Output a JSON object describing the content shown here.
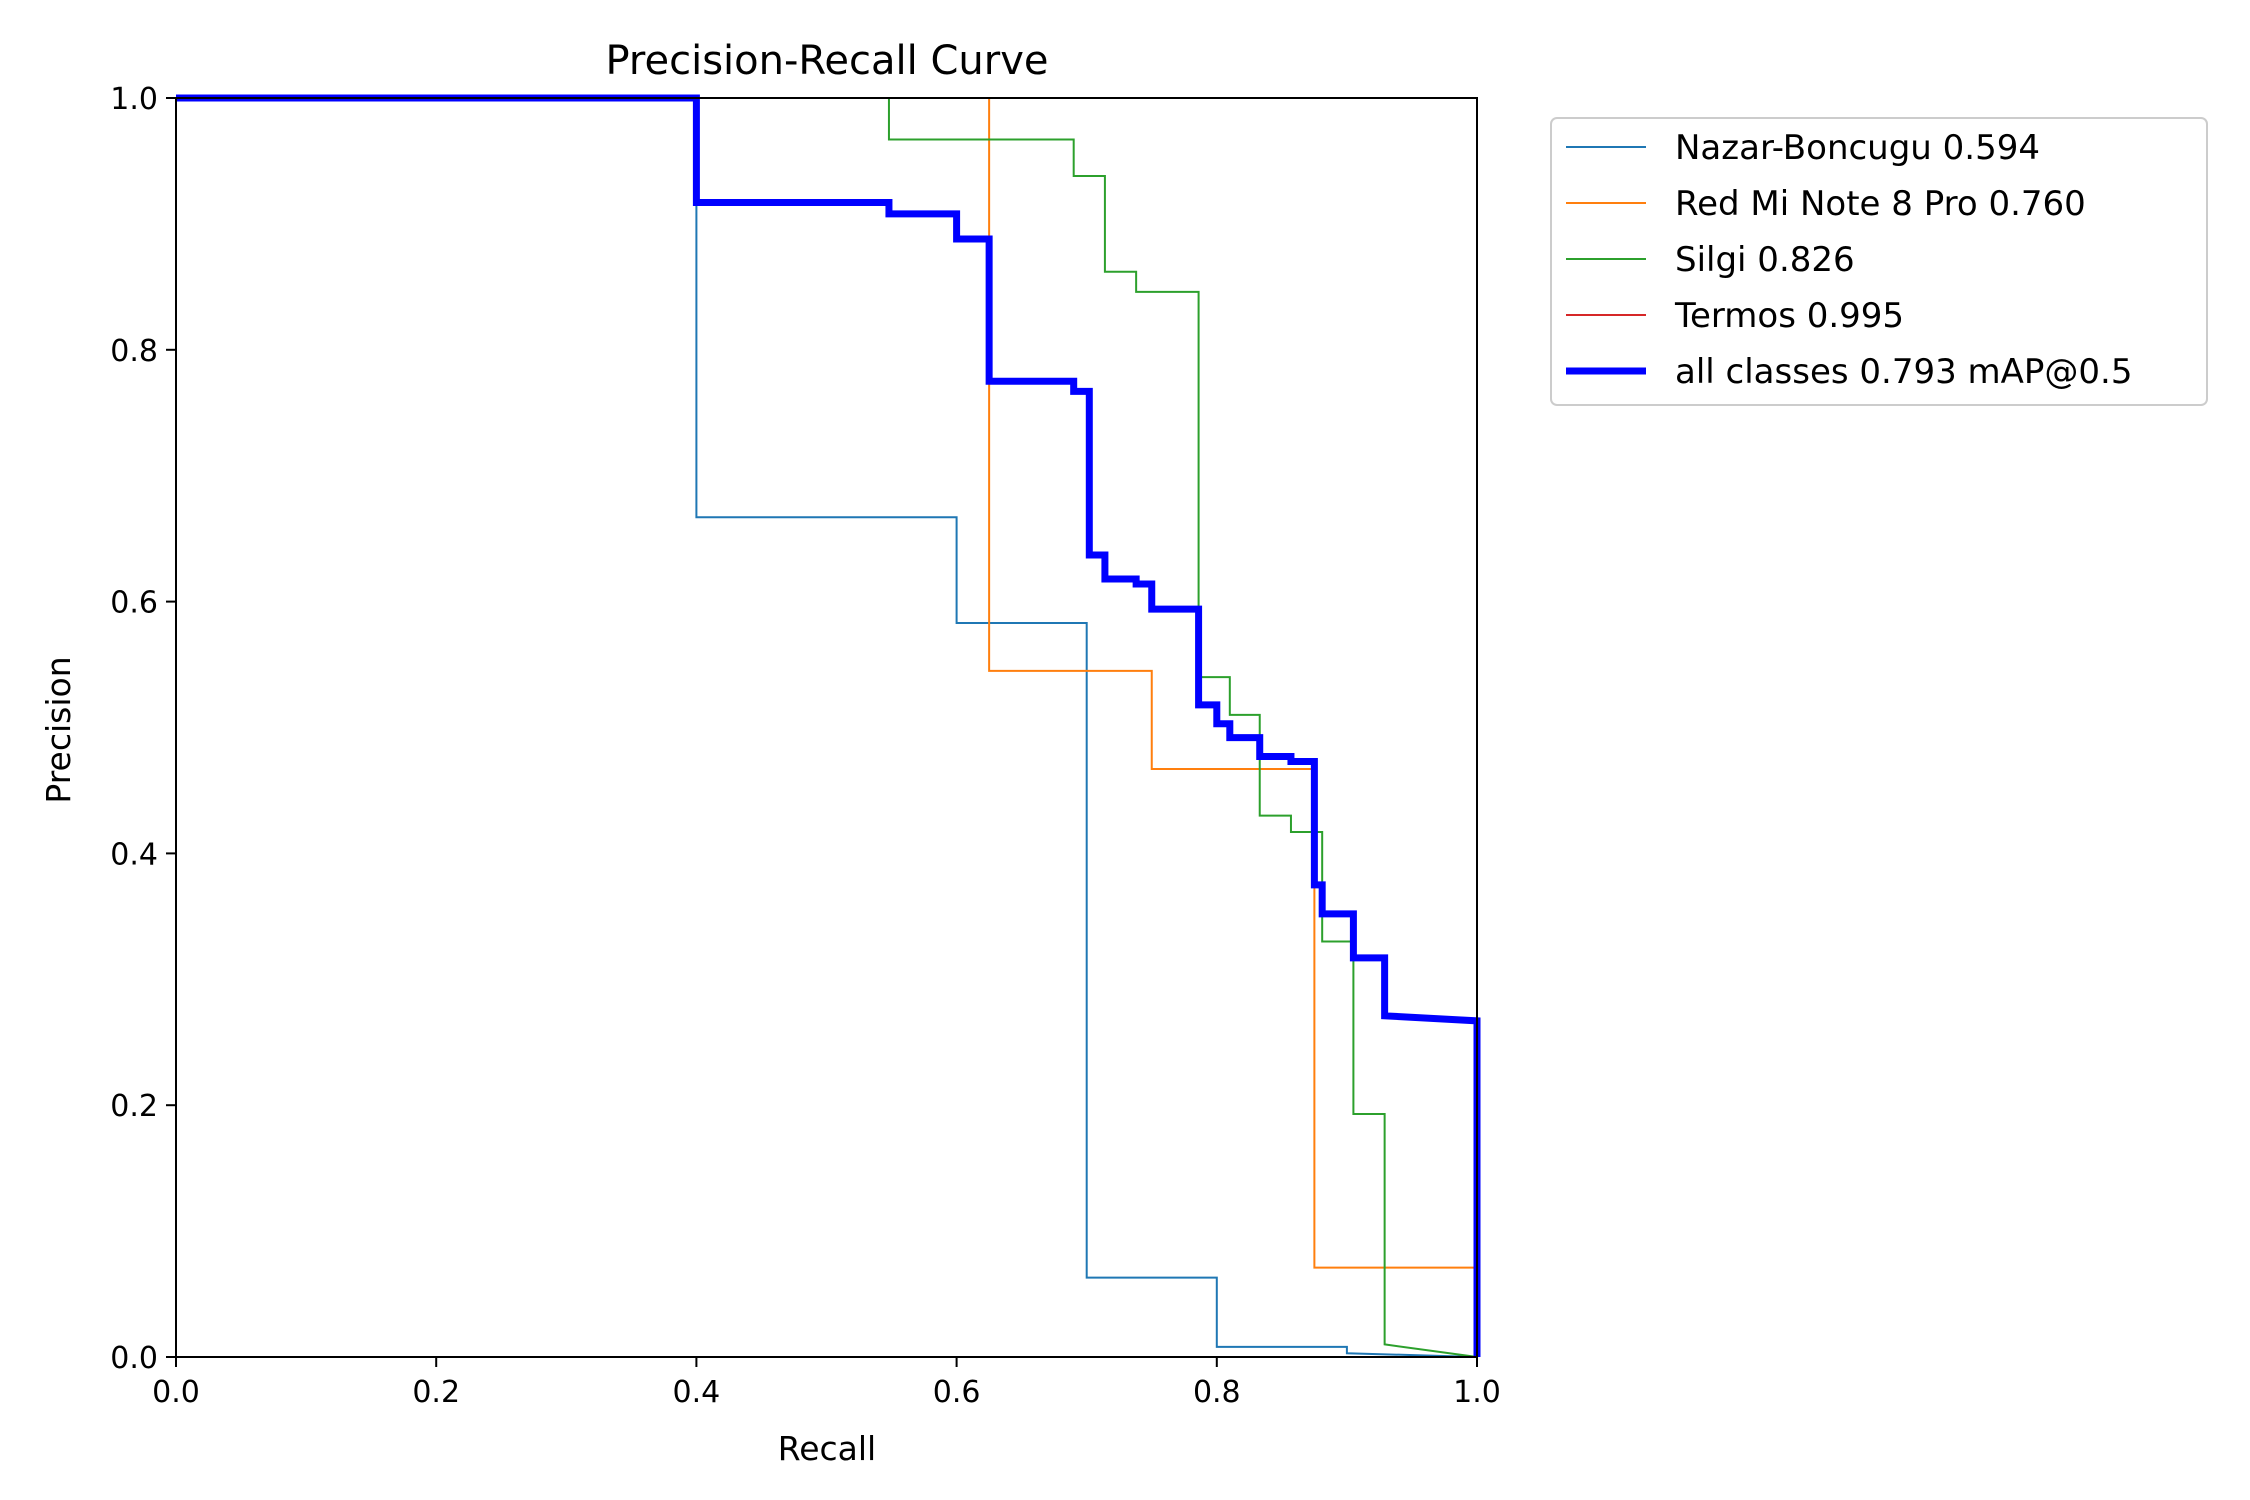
{
  "chart_data": {
    "type": "line",
    "title": "Precision-Recall Curve",
    "xlabel": "Recall",
    "ylabel": "Precision",
    "xlim": [
      0,
      1
    ],
    "ylim": [
      0,
      1
    ],
    "x_ticks": [
      "0.0",
      "0.2",
      "0.4",
      "0.6",
      "0.8",
      "1.0"
    ],
    "y_ticks": [
      "0.0",
      "0.2",
      "0.4",
      "0.6",
      "0.8",
      "1.0"
    ],
    "grid": false,
    "legend_position": "outside-top-right",
    "series": [
      {
        "name": "Nazar-Boncugu 0.594",
        "color": "#1f77b4",
        "width": "thin",
        "points": [
          [
            0,
            1
          ],
          [
            0.4,
            1
          ],
          [
            0.4,
            0.667
          ],
          [
            0.6,
            0.667
          ],
          [
            0.6,
            0.583
          ],
          [
            0.7,
            0.583
          ],
          [
            0.7,
            0.063
          ],
          [
            0.8,
            0.063
          ],
          [
            0.8,
            0.008
          ],
          [
            0.9,
            0.008
          ],
          [
            0.9,
            0.003
          ],
          [
            1.0,
            0.0
          ]
        ]
      },
      {
        "name": "Red Mi Note 8 Pro 0.760",
        "color": "#ff7f0e",
        "width": "thin",
        "points": [
          [
            0,
            1
          ],
          [
            0.625,
            1
          ],
          [
            0.625,
            0.545
          ],
          [
            0.75,
            0.545
          ],
          [
            0.75,
            0.467
          ],
          [
            0.875,
            0.467
          ],
          [
            0.875,
            0.071
          ],
          [
            1.0,
            0.071
          ],
          [
            1.0,
            0.0
          ]
        ]
      },
      {
        "name": "Silgi 0.826",
        "color": "#2ca02c",
        "width": "thin",
        "points": [
          [
            0,
            1
          ],
          [
            0.548,
            1
          ],
          [
            0.548,
            0.967
          ],
          [
            0.69,
            0.967
          ],
          [
            0.69,
            0.938
          ],
          [
            0.714,
            0.938
          ],
          [
            0.714,
            0.862
          ],
          [
            0.738,
            0.862
          ],
          [
            0.738,
            0.846
          ],
          [
            0.786,
            0.846
          ],
          [
            0.786,
            0.54
          ],
          [
            0.81,
            0.54
          ],
          [
            0.81,
            0.51
          ],
          [
            0.833,
            0.51
          ],
          [
            0.833,
            0.43
          ],
          [
            0.857,
            0.43
          ],
          [
            0.857,
            0.417
          ],
          [
            0.881,
            0.417
          ],
          [
            0.881,
            0.33
          ],
          [
            0.905,
            0.33
          ],
          [
            0.905,
            0.193
          ],
          [
            0.929,
            0.193
          ],
          [
            0.929,
            0.01
          ],
          [
            1.0,
            0.0
          ]
        ]
      },
      {
        "name": "Termos 0.995",
        "color": "#d62728",
        "width": "thin",
        "points": [
          [
            0,
            1
          ],
          [
            1.0,
            1
          ],
          [
            1.0,
            0.0
          ]
        ]
      },
      {
        "name": "all classes 0.793 mAP@0.5",
        "color": "#0000ff",
        "width": "thick",
        "points": [
          [
            0,
            1
          ],
          [
            0.4,
            1
          ],
          [
            0.4,
            0.917
          ],
          [
            0.548,
            0.917
          ],
          [
            0.548,
            0.908
          ],
          [
            0.6,
            0.908
          ],
          [
            0.6,
            0.888
          ],
          [
            0.625,
            0.888
          ],
          [
            0.625,
            0.775
          ],
          [
            0.69,
            0.775
          ],
          [
            0.69,
            0.767
          ],
          [
            0.702,
            0.767
          ],
          [
            0.702,
            0.637
          ],
          [
            0.714,
            0.637
          ],
          [
            0.714,
            0.618
          ],
          [
            0.738,
            0.618
          ],
          [
            0.738,
            0.614
          ],
          [
            0.75,
            0.614
          ],
          [
            0.75,
            0.594
          ],
          [
            0.786,
            0.594
          ],
          [
            0.786,
            0.518
          ],
          [
            0.8,
            0.518
          ],
          [
            0.8,
            0.503
          ],
          [
            0.81,
            0.503
          ],
          [
            0.81,
            0.492
          ],
          [
            0.833,
            0.492
          ],
          [
            0.833,
            0.477
          ],
          [
            0.857,
            0.477
          ],
          [
            0.857,
            0.473
          ],
          [
            0.875,
            0.473
          ],
          [
            0.875,
            0.375
          ],
          [
            0.881,
            0.375
          ],
          [
            0.881,
            0.352
          ],
          [
            0.905,
            0.352
          ],
          [
            0.905,
            0.317
          ],
          [
            0.929,
            0.317
          ],
          [
            0.929,
            0.271
          ],
          [
            1.0,
            0.267
          ],
          [
            1.0,
            0.0
          ]
        ]
      }
    ]
  }
}
